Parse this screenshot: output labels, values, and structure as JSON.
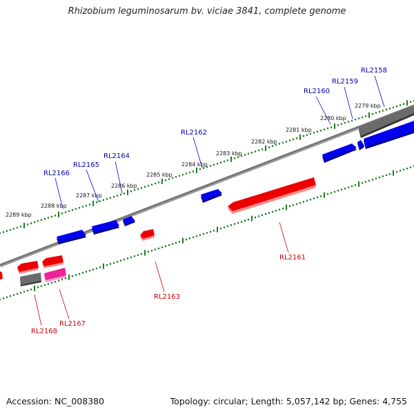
{
  "title": "Rhizobium leguminosarum bv. viciae 3841, complete genome",
  "footer": {
    "accession": "Accession: NC_008380",
    "topology": "Topology: circular; Length: 5,057,142 bp; Genes: 4,755"
  },
  "colors": {
    "forward_gene": "#0000ee",
    "reverse_gene": "#ee0000",
    "pink_gene": "#ee2299",
    "pseudo_gene": "#555555",
    "backbone": "#7a7a7a",
    "ticks": "#1a7a1a",
    "forward_label": "#0000aa",
    "reverse_label": "#cc0000"
  },
  "kbp_labels": [
    "2279 kbp",
    "2280 kbp",
    "2281 kbp",
    "2282 kbp",
    "2283 kbp",
    "2284 kbp",
    "2285 kbp",
    "2286 kbp",
    "2287 kbp",
    "2288 kbp",
    "2289 kbp"
  ],
  "genes": {
    "forward": [
      "RL2158",
      "RL2159",
      "RL2160",
      "RL2162",
      "RL2164",
      "RL2165",
      "RL2166"
    ],
    "reverse": [
      "RL2161",
      "RL2163",
      "RL2167",
      "RL2168"
    ]
  }
}
